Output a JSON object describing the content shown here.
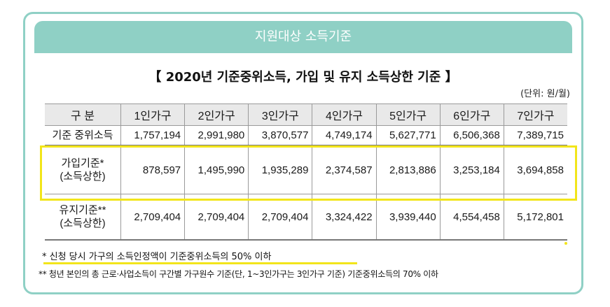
{
  "banner": "지원대상 소득기준",
  "title": "【 2020년 기준중위소득, 가입 및 유지 소득상한 기준 】",
  "unit": "(단위: 원/월)",
  "table": {
    "headers": [
      "구 분",
      "1인가구",
      "2인가구",
      "3인가구",
      "4인가구",
      "5인가구",
      "6인가구",
      "7인가구"
    ],
    "rows": [
      {
        "label": [
          "기준 중위소득"
        ],
        "values": [
          "1,757,194",
          "2,991,980",
          "3,870,577",
          "4,749,174",
          "5,627,771",
          "6,506,368",
          "7,389,715"
        ]
      },
      {
        "label": [
          "가입기준*",
          "(소득상한)"
        ],
        "values": [
          "878,597",
          "1,495,990",
          "1,935,289",
          "2,374,587",
          "2,813,886",
          "3,253,184",
          "3,694,858"
        ]
      },
      {
        "label": [
          "유지기준**",
          "(소득상한)"
        ],
        "values": [
          "2,709,404",
          "2,709,404",
          "2,709,404",
          "3,324,422",
          "3,939,440",
          "4,554,458",
          "5,172,801"
        ]
      }
    ]
  },
  "notes": {
    "note1": "* 신청 당시 가구의 소득인정액이 기준중위소득의 50% 이하",
    "note2": "** 청년 본인의 총 근로·사업소득이 구간별 가구원수 기준(단, 1~3인가구는 3인가구 기준) 기준중위소득의 70% 이하"
  },
  "colors": {
    "accent": "#8fd0c5",
    "highlight": "#f2e51a"
  }
}
